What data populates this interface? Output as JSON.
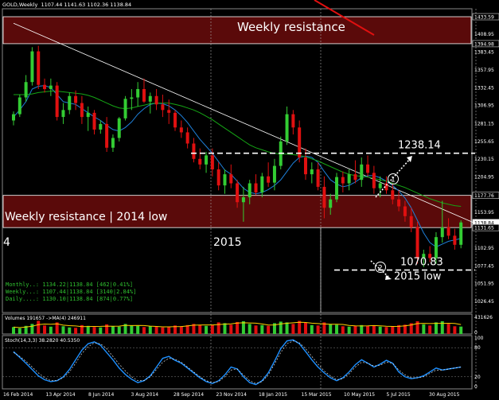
{
  "header": {
    "symbol": "GOLD,Weekly",
    "ohlc": "1107.44 1141.63 1102.36 1138.84"
  },
  "zones": [
    {
      "label": "Weekly resistance",
      "top": 1433.59,
      "bottom": 1394.98
    },
    {
      "label": "Weekly resistance | 2014 low",
      "top": 1177.76,
      "bottom": 1131.65
    }
  ],
  "annotations": {
    "level_high": "1238.14",
    "level_low": "1070.83",
    "low_label": "2015 low",
    "marker_1": "1",
    "marker_2": "2",
    "year_label": "2015",
    "prev_year_fragment": "4"
  },
  "indicators_text": [
    "Monthly..: 1134.22|1138.84 [462|0.41%]",
    "Weekly...: 1107.44|1138.84 [3140|2.84%]",
    "Daily....: 1130.10|1138.84 [874|0.77%]"
  ],
  "volume_panel": {
    "label": "Volumes 191657 ->MA(4) 246911",
    "scale_top": "431626",
    "scale_zero": "0"
  },
  "stoch_panel": {
    "label": "Stoch(14,3,3) 38.2820 40.5350",
    "levels": [
      "100",
      "80",
      "20",
      "0"
    ]
  },
  "price_axis": [
    "1433.59",
    "1408.95",
    "1394.98",
    "1383.45",
    "1357.95",
    "1332.45",
    "1306.95",
    "1281.15",
    "1255.65",
    "1230.15",
    "1204.95",
    "1177.76",
    "1153.95",
    "1138.84",
    "1131.65",
    "1102.95",
    "1077.45",
    "1051.95",
    "1026.45"
  ],
  "time_axis": [
    "16 Feb 2014",
    "13 Apr 2014",
    "8 Jun 2014",
    "3 Aug 2014",
    "28 Sep 2014",
    "23 Nov 2014",
    "18 Jan 2015",
    "15 Mar 2015",
    "10 May 2015",
    "5 Jul 2015",
    "30 Aug 2015"
  ],
  "colors": {
    "bull": "#33cc33",
    "bear": "#e01010",
    "zone": "#5a0a0a",
    "ma_fast": "#1e7fd8",
    "ma_slow": "#15a515",
    "trend": "#ffffff",
    "stoch": "#1e90ff"
  },
  "chart_data": {
    "type": "candlestick",
    "timeframe": "weekly",
    "ylim": [
      1010,
      1445
    ],
    "candles": [
      [
        1285,
        1298,
        1278,
        1294
      ],
      [
        1294,
        1322,
        1290,
        1318
      ],
      [
        1318,
        1350,
        1312,
        1340
      ],
      [
        1340,
        1390,
        1335,
        1384
      ],
      [
        1384,
        1392,
        1330,
        1336
      ],
      [
        1336,
        1345,
        1325,
        1330
      ],
      [
        1330,
        1345,
        1320,
        1335
      ],
      [
        1335,
        1340,
        1285,
        1290
      ],
      [
        1290,
        1310,
        1280,
        1300
      ],
      [
        1300,
        1325,
        1294,
        1320
      ],
      [
        1320,
        1328,
        1300,
        1310
      ],
      [
        1310,
        1320,
        1280,
        1290
      ],
      [
        1290,
        1305,
        1270,
        1296
      ],
      [
        1296,
        1300,
        1265,
        1272
      ],
      [
        1272,
        1285,
        1266,
        1280
      ],
      [
        1280,
        1290,
        1240,
        1246
      ],
      [
        1246,
        1265,
        1240,
        1260
      ],
      [
        1260,
        1290,
        1255,
        1288
      ],
      [
        1288,
        1320,
        1285,
        1316
      ],
      [
        1316,
        1330,
        1300,
        1318
      ],
      [
        1318,
        1340,
        1305,
        1330
      ],
      [
        1330,
        1345,
        1310,
        1312
      ],
      [
        1312,
        1325,
        1295,
        1320
      ],
      [
        1320,
        1330,
        1300,
        1308
      ],
      [
        1308,
        1322,
        1290,
        1300
      ],
      [
        1300,
        1315,
        1280,
        1296
      ],
      [
        1296,
        1300,
        1270,
        1275
      ],
      [
        1275,
        1285,
        1260,
        1268
      ],
      [
        1268,
        1275,
        1245,
        1252
      ],
      [
        1252,
        1260,
        1225,
        1230
      ],
      [
        1230,
        1245,
        1215,
        1222
      ],
      [
        1222,
        1240,
        1210,
        1235
      ],
      [
        1235,
        1245,
        1205,
        1215
      ],
      [
        1215,
        1225,
        1185,
        1192
      ],
      [
        1192,
        1215,
        1180,
        1208
      ],
      [
        1208,
        1222,
        1188,
        1195
      ],
      [
        1195,
        1200,
        1160,
        1168
      ],
      [
        1168,
        1190,
        1140,
        1175
      ],
      [
        1175,
        1200,
        1165,
        1195
      ],
      [
        1195,
        1208,
        1178,
        1182
      ],
      [
        1182,
        1210,
        1175,
        1205
      ],
      [
        1205,
        1225,
        1190,
        1196
      ],
      [
        1196,
        1230,
        1185,
        1220
      ],
      [
        1220,
        1262,
        1215,
        1255
      ],
      [
        1255,
        1305,
        1250,
        1294
      ],
      [
        1294,
        1300,
        1265,
        1275
      ],
      [
        1275,
        1285,
        1225,
        1232
      ],
      [
        1232,
        1245,
        1200,
        1208
      ],
      [
        1208,
        1225,
        1195,
        1215
      ],
      [
        1215,
        1225,
        1185,
        1190
      ],
      [
        1190,
        1205,
        1145,
        1160
      ],
      [
        1160,
        1180,
        1150,
        1172
      ],
      [
        1172,
        1210,
        1168,
        1204
      ],
      [
        1204,
        1212,
        1182,
        1195
      ],
      [
        1195,
        1215,
        1185,
        1208
      ],
      [
        1208,
        1228,
        1195,
        1200
      ],
      [
        1200,
        1232,
        1190,
        1222
      ],
      [
        1222,
        1235,
        1205,
        1210
      ],
      [
        1210,
        1220,
        1180,
        1188
      ],
      [
        1188,
        1205,
        1175,
        1195
      ],
      [
        1195,
        1205,
        1180,
        1185
      ],
      [
        1185,
        1195,
        1165,
        1172
      ],
      [
        1172,
        1185,
        1155,
        1162
      ],
      [
        1162,
        1170,
        1140,
        1148
      ],
      [
        1148,
        1160,
        1125,
        1132
      ],
      [
        1132,
        1140,
        1080,
        1088
      ],
      [
        1088,
        1100,
        1075,
        1094
      ],
      [
        1094,
        1105,
        1082,
        1088
      ],
      [
        1088,
        1125,
        1080,
        1118
      ],
      [
        1118,
        1170,
        1110,
        1132
      ],
      [
        1132,
        1145,
        1115,
        1120
      ],
      [
        1120,
        1130,
        1100,
        1107
      ],
      [
        1107,
        1142,
        1102,
        1139
      ]
    ],
    "series": [
      {
        "name": "MA fast",
        "values": [
          1290,
          1300,
          1312,
          1330,
          1334,
          1335,
          1332,
          1322,
          1312,
          1310,
          1308,
          1302,
          1296,
          1290,
          1285,
          1278,
          1272,
          1270,
          1275,
          1283,
          1294,
          1302,
          1308,
          1310,
          1309,
          1306,
          1300,
          1292,
          1282,
          1270,
          1258,
          1248,
          1238,
          1226,
          1214,
          1208,
          1198,
          1188,
          1182,
          1180,
          1182,
          1186,
          1192,
          1200,
          1212,
          1224,
          1232,
          1234,
          1232,
          1225,
          1212,
          1200,
          1194,
          1190,
          1192,
          1197,
          1203,
          1206,
          1206,
          1203,
          1198,
          1192,
          1184,
          1174,
          1160,
          1142,
          1124,
          1110,
          1104,
          1108,
          1112,
          1114,
          1116
        ]
      },
      {
        "name": "MA slow",
        "values": [
          1322,
          1322,
          1322,
          1323,
          1325,
          1326,
          1327,
          1327,
          1326,
          1325,
          1324,
          1323,
          1321,
          1318,
          1314,
          1310,
          1306,
          1303,
          1302,
          1303,
          1305,
          1307,
          1309,
          1310,
          1310,
          1310,
          1308,
          1306,
          1303,
          1300,
          1296,
          1291,
          1286,
          1280,
          1274,
          1268,
          1262,
          1256,
          1250,
          1246,
          1243,
          1240,
          1238,
          1237,
          1237,
          1236,
          1235,
          1233,
          1230,
          1227,
          1223,
          1219,
          1215,
          1211,
          1208,
          1206,
          1205,
          1204,
          1202,
          1200,
          1198,
          1195,
          1192,
          1189,
          1185,
          1181,
          1177,
          1173,
          1170,
          1167,
          1165,
          1163,
          1162
        ]
      }
    ],
    "trend_line": {
      "start": [
        0,
        1390
      ],
      "end": [
        75,
        1135
      ]
    },
    "horizontal_levels": [
      1238.14,
      1070.83
    ],
    "volumes": [
      180,
      150,
      210,
      260,
      340,
      220,
      190,
      300,
      200,
      170,
      160,
      230,
      210,
      180,
      170,
      250,
      200,
      190,
      260,
      220,
      210,
      180,
      200,
      190,
      170,
      180,
      220,
      200,
      230,
      260,
      240,
      210,
      230,
      300,
      280,
      240,
      310,
      330,
      260,
      220,
      230,
      210,
      280,
      320,
      300,
      260,
      340,
      290,
      230,
      220,
      300,
      250,
      240,
      200,
      190,
      210,
      230,
      210,
      220,
      190,
      180,
      190,
      230,
      240,
      280,
      330,
      250,
      220,
      300,
      330,
      260,
      200,
      192
    ],
    "stoch": [
      {
        "name": "%K",
        "values": [
          72,
          60,
          48,
          35,
          22,
          14,
          10,
          12,
          20,
          35,
          55,
          75,
          88,
          92,
          85,
          70,
          55,
          38,
          25,
          15,
          8,
          12,
          22,
          40,
          58,
          62,
          54,
          48,
          38,
          28,
          18,
          10,
          6,
          12,
          24,
          40,
          36,
          20,
          8,
          4,
          12,
          28,
          52,
          78,
          94,
          96,
          88,
          72,
          55,
          40,
          28,
          18,
          12,
          18,
          30,
          45,
          55,
          48,
          40,
          46,
          54,
          48,
          30,
          20,
          16,
          18,
          22,
          30,
          38,
          34,
          36,
          38,
          40
        ]
      },
      {
        "name": "%D",
        "values": [
          70,
          62,
          52,
          40,
          28,
          18,
          12,
          12,
          18,
          30,
          48,
          68,
          82,
          90,
          88,
          78,
          62,
          46,
          32,
          20,
          12,
          12,
          20,
          35,
          50,
          58,
          56,
          50,
          40,
          30,
          20,
          12,
          8,
          10,
          20,
          34,
          36,
          24,
          12,
          6,
          10,
          24,
          46,
          70,
          88,
          94,
          90,
          78,
          62,
          46,
          32,
          22,
          14,
          16,
          26,
          40,
          50,
          48,
          42,
          44,
          50,
          48,
          34,
          24,
          18,
          18,
          20,
          27,
          34,
          34,
          36,
          38,
          40
        ]
      }
    ]
  }
}
